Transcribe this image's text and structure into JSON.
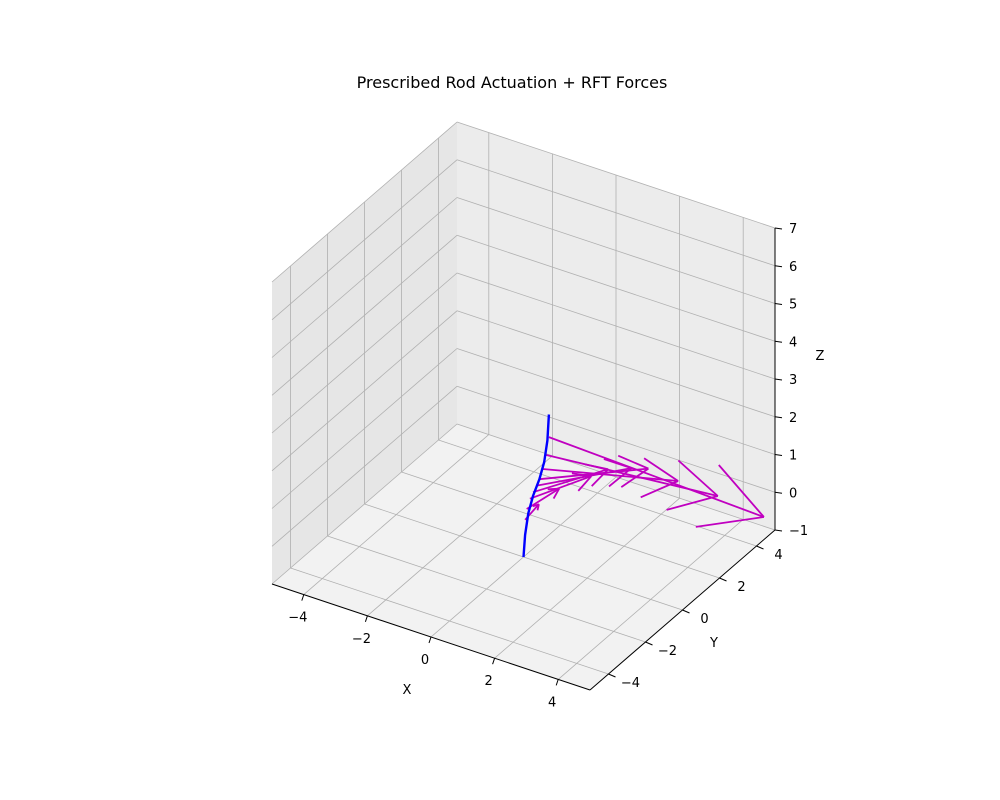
{
  "chart_data": {
    "type": "3d-line-quiver",
    "title": "Prescribed Rod Actuation + RFT Forces",
    "xlabel": "X",
    "ylabel": "Y",
    "zlabel": "Z",
    "xlim": [
      -5,
      5
    ],
    "ylim": [
      -5,
      5
    ],
    "zlim": [
      -1,
      7
    ],
    "xticks": [
      -4,
      -2,
      0,
      2,
      4
    ],
    "yticks": [
      -4,
      -2,
      0,
      2,
      4
    ],
    "zticks": [
      -1,
      0,
      1,
      2,
      3,
      4,
      5,
      6,
      7
    ],
    "tick_labels": {
      "x": [
        "−4",
        "−2",
        "0",
        "2",
        "4"
      ],
      "y": [
        "−4",
        "−2",
        "0",
        "2",
        "4"
      ],
      "z": [
        "−1",
        "0",
        "1",
        "2",
        "3",
        "4",
        "5",
        "6",
        "7"
      ]
    },
    "grid": true,
    "rod": {
      "color": "#0000ff",
      "points": [
        [
          0.0,
          0.0,
          -1.0
        ],
        [
          0.05,
          0.0,
          -0.4
        ],
        [
          0.15,
          0.0,
          0.2
        ],
        [
          0.3,
          0.0,
          0.7
        ],
        [
          0.5,
          0.0,
          1.2
        ],
        [
          0.65,
          0.0,
          1.7
        ],
        [
          0.75,
          0.0,
          2.3
        ],
        [
          0.8,
          0.0,
          3.0
        ]
      ]
    },
    "forces": {
      "color": "#c000c0",
      "arrows": [
        {
          "origin": [
            0.05,
            0.0,
            0.0
          ],
          "vector": [
            0.2,
            0.4,
            0.3
          ]
        },
        {
          "origin": [
            0.1,
            0.0,
            0.3
          ],
          "vector": [
            0.5,
            0.9,
            0.3
          ]
        },
        {
          "origin": [
            0.2,
            0.0,
            0.6
          ],
          "vector": [
            1.0,
            1.6,
            0.2
          ]
        },
        {
          "origin": [
            0.3,
            0.0,
            0.8
          ],
          "vector": [
            1.2,
            2.0,
            0.1
          ]
        },
        {
          "origin": [
            0.4,
            0.0,
            1.0
          ],
          "vector": [
            1.6,
            2.4,
            -0.1
          ]
        },
        {
          "origin": [
            0.5,
            0.0,
            1.2
          ],
          "vector": [
            1.8,
            2.8,
            -0.4
          ]
        },
        {
          "origin": [
            0.6,
            0.0,
            1.5
          ],
          "vector": [
            2.4,
            3.2,
            -1.0
          ]
        },
        {
          "origin": [
            0.7,
            0.0,
            1.9
          ],
          "vector": [
            3.2,
            3.8,
            -1.8
          ]
        },
        {
          "origin": [
            0.8,
            0.0,
            2.4
          ],
          "vector": [
            4.2,
            4.4,
            -2.8
          ]
        }
      ]
    },
    "view": {
      "elev": 30,
      "azim": -60
    }
  }
}
